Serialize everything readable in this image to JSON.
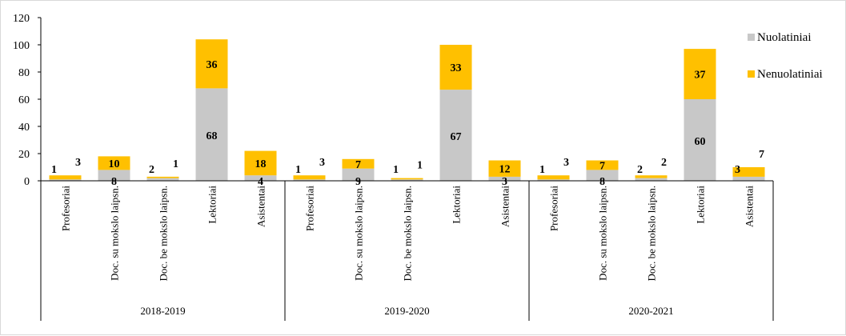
{
  "chart_data": {
    "type": "bar",
    "stacked": true,
    "ylim": [
      0,
      120
    ],
    "yticks": [
      0,
      20,
      40,
      60,
      80,
      100,
      120
    ],
    "grid": false,
    "legend_position": "right",
    "groups": [
      {
        "label": "2018-2019",
        "categories": [
          "Profesoriai",
          "Doc. su mokslo laipsn.",
          "Doc. be mokslo laipsn.",
          "Lektoriai",
          "Asistentai"
        ]
      },
      {
        "label": "2019-2020",
        "categories": [
          "Profesoriai",
          "Doc. su mokslo laipsn.",
          "Doc. be mokslo laipsn.",
          "Lektoriai",
          "Asistentai"
        ]
      },
      {
        "label": "2020-2021",
        "categories": [
          "Profesoriai",
          "Doc. su mokslo laipsn.",
          "Doc. be mokslo laipsn.",
          "Lektoriai",
          "Asistentai"
        ]
      }
    ],
    "series": [
      {
        "name": "Nuolatiniai",
        "color": "#c8c8c8",
        "values": [
          1,
          8,
          2,
          68,
          4,
          1,
          9,
          1,
          67,
          3,
          1,
          8,
          2,
          60,
          3
        ]
      },
      {
        "name": "Nenuolatiniai",
        "color": "#ffc000",
        "values": [
          3,
          10,
          1,
          36,
          18,
          3,
          7,
          1,
          33,
          12,
          3,
          7,
          2,
          37,
          7
        ]
      }
    ]
  }
}
